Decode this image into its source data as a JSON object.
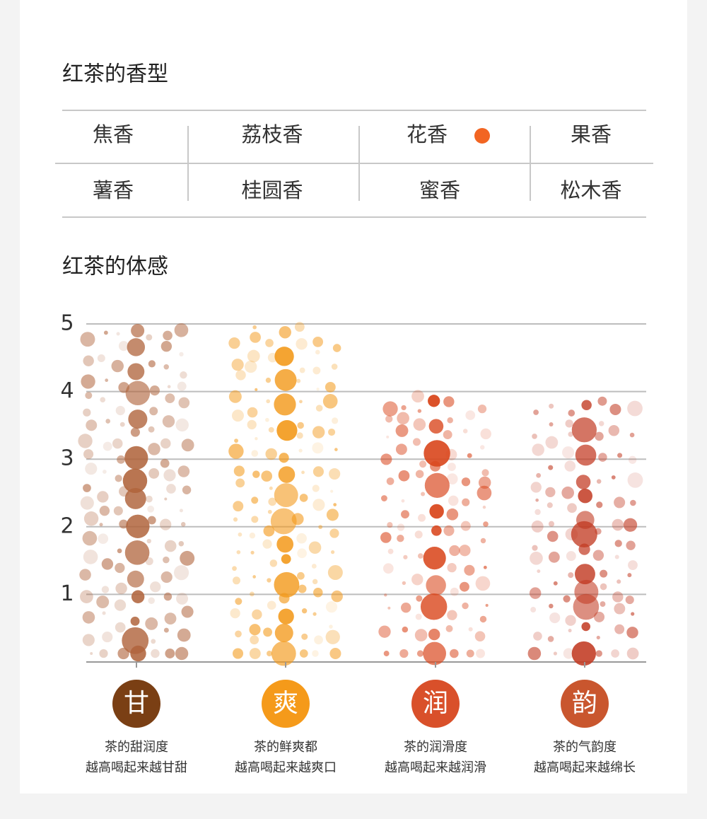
{
  "aroma": {
    "title": "红茶的香型",
    "rows": [
      [
        "焦香",
        "荔枝香",
        "花香",
        "果香"
      ],
      [
        "薯香",
        "桂圆香",
        "蜜香",
        "松木香"
      ]
    ]
  },
  "chart_data": {
    "type": "bubble",
    "title": "红茶的体感",
    "categories": [
      "甘",
      "爽",
      "润",
      "韵"
    ],
    "values": [
      5,
      5,
      4,
      4
    ],
    "colors": [
      "#7a3f14",
      "#f59a1a",
      "#d9502a",
      "#c9562e"
    ],
    "bubble_colors": [
      "#b0643c",
      "#f39a1c",
      "#d9461c",
      "#c23a22"
    ],
    "descriptions": [
      [
        "茶的甜润度",
        "越高喝起来越甘甜"
      ],
      [
        "茶的鲜爽都",
        "越高喝起来越爽口"
      ],
      [
        "茶的润滑度",
        "越高喝起来越润滑"
      ],
      [
        "茶的气韵度",
        "越高喝起来越绵长"
      ]
    ],
    "ylim": [
      0,
      5
    ],
    "yticks": [
      1,
      2,
      3,
      4,
      5
    ],
    "grid": true
  }
}
